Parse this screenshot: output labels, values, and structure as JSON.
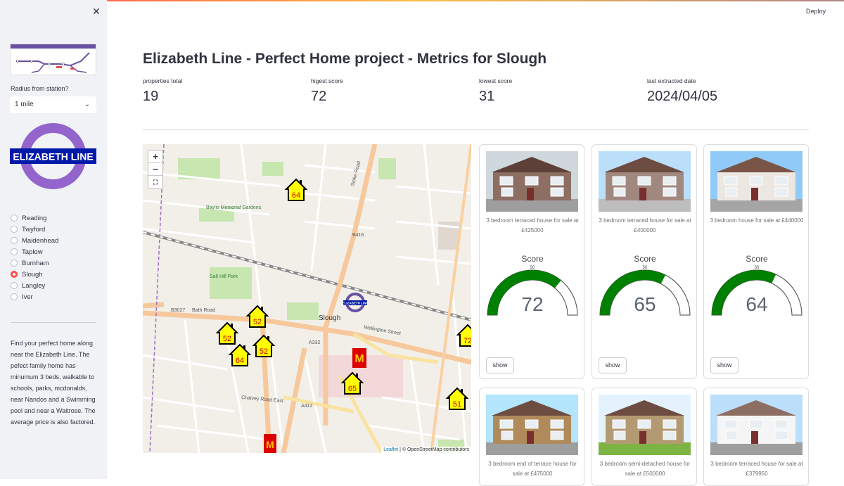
{
  "sidebar": {
    "close_icon": "close-icon",
    "radius_label": "Radius from station?",
    "radius_value": "1 mile",
    "logo_text": "ELIZABETH LINE",
    "stations": [
      "Reading",
      "Twyford",
      "Maidenhead",
      "Taplow",
      "Burnham",
      "Slough",
      "Langley",
      "Iver"
    ],
    "selected_station": "Slough",
    "description": "Find your perfect home along near the Elizabeth Line. The pefect family home has minumum 3 beds, walkable to schools, parks, mcdonalds, near Nandos and a Swimming pool and near a Waitrose. The average price is also factored."
  },
  "header": {
    "deploy_label": "Deploy"
  },
  "main": {
    "title": "Elizabeth Line - Perfect Home project - Metrics for Slough",
    "metrics": [
      {
        "label": "properties total",
        "value": "19"
      },
      {
        "label": "higest score",
        "value": "72"
      },
      {
        "label": "lowest score",
        "value": "31"
      },
      {
        "label": "last extracted date",
        "value": "2024/04/05"
      }
    ]
  },
  "map": {
    "zoom_in": "+",
    "zoom_out": "−",
    "attribution_leaflet": "Leaflet",
    "attribution_osm": "© OpenStreetMap contributors",
    "station_label": "ELIZABETH LINE",
    "town_label": "Slough",
    "markers": [
      "64",
      "52",
      "52",
      "52",
      "64",
      "65",
      "51",
      "72"
    ],
    "roads": [
      "Bath Road",
      "Wellington Street",
      "Stoke Road",
      "Chalvey Road East",
      "B416",
      "A332",
      "A412",
      "B3027",
      "Salt Hill Park",
      "Baylis Memorial Gardens"
    ]
  },
  "cards": [
    {
      "desc": "3 bedroom terraced house for sale at £425000",
      "score_label": "Score",
      "score": 72,
      "gauge_max": 100,
      "mid_tick": "50",
      "button": "show"
    },
    {
      "desc": "3 bedroom terraced house for sale at £400000",
      "score_label": "Score",
      "score": 65,
      "gauge_max": 100,
      "mid_tick": "50",
      "button": "show"
    },
    {
      "desc": "3 bedroom house for sale at £440000",
      "score_label": "Score",
      "score": 64,
      "gauge_max": 100,
      "mid_tick": "50",
      "button": "show"
    },
    {
      "desc": "3 bedroom end of terrace house for sale at £475000"
    },
    {
      "desc": "3 bedroom semi-detached house for sale at £500000"
    },
    {
      "desc": "3 bedroom terraced house for sale at £379950"
    }
  ],
  "colors": {
    "gauge_fill": "#008000",
    "accent": "#ff4b4b",
    "elizabeth_purple": "#6950a1",
    "marker_fill": "#ffff00"
  }
}
